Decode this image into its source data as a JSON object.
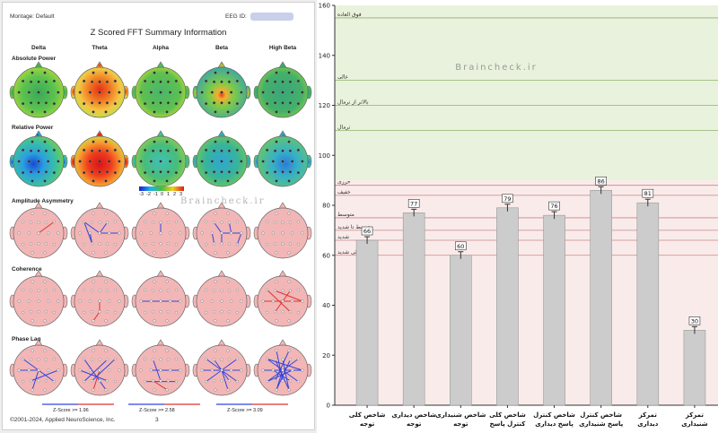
{
  "report": {
    "montage_label": "Montage:",
    "montage_value": "Default",
    "eeg_id_label": "EEG ID:",
    "title": "Z Scored FFT Summary Information",
    "bands": [
      "Delta",
      "Theta",
      "Alpha",
      "Beta",
      "High Beta"
    ],
    "rows": [
      "Absolute Power",
      "Relative Power",
      "Amplitude Asymmetry",
      "Coherence",
      "Phase Lag"
    ],
    "colorbar_labels": [
      "-3",
      "-2",
      "-1",
      "0",
      "1",
      "2",
      "3"
    ],
    "legend": [
      "Z-Score >= 1.96",
      "Z-Score >= 2.58",
      "Z-Score >= 3.09"
    ],
    "copyright": "©2001-2024, Applied NeuroScience, Inc.",
    "page_number": "3",
    "colors": {
      "blue_line": "#3344dd",
      "red_line": "#dd3333",
      "head_fill": "#f2b6b6"
    }
  },
  "watermark": "Braincheck.ir",
  "chart_data": {
    "type": "bar",
    "ylim": [
      0,
      160
    ],
    "y_ticks": [
      0,
      20,
      40,
      60,
      80,
      100,
      120,
      140,
      160
    ],
    "categories": [
      "شاخص کلی توجه",
      "شاخص دیداری توجه",
      "شاخص شنیداری توجه",
      "شاخص کلی کنترل پاسخ",
      "شاخص کنترل پاسخ دیداری",
      "شاخص کنترل پاسخ شنیداری",
      "تمرکز دیداری",
      "تمرکز شنیداری"
    ],
    "values": [
      66,
      77,
      60,
      79,
      76,
      86,
      81,
      30
    ],
    "value_labels": [
      "66",
      "77",
      "60",
      "79",
      "76",
      "86",
      "81",
      "30"
    ],
    "bands": [
      {
        "label": "فوق العاده",
        "y": 155
      },
      {
        "label": "عالی",
        "y": 130
      },
      {
        "label": "بالاتر از نرمال",
        "y": 120
      },
      {
        "label": "نرمال",
        "y": 110
      },
      {
        "label": "حرزی",
        "y": 88
      },
      {
        "label": "خفیف",
        "y": 84
      },
      {
        "label": "متوسط",
        "y": 75
      },
      {
        "label": "متوسط تا شدید",
        "y": 70
      },
      {
        "label": "شدید",
        "y": 66
      },
      {
        "label": "خیلی شدید",
        "y": 60
      }
    ],
    "colors": {
      "upper_bg": "#e9f2dc",
      "lower_bg": "#faebeb",
      "upper_line": "#8fb36f",
      "lower_line": "#c98686",
      "bar": "#cccccc",
      "bar_edge": "#999999"
    }
  }
}
